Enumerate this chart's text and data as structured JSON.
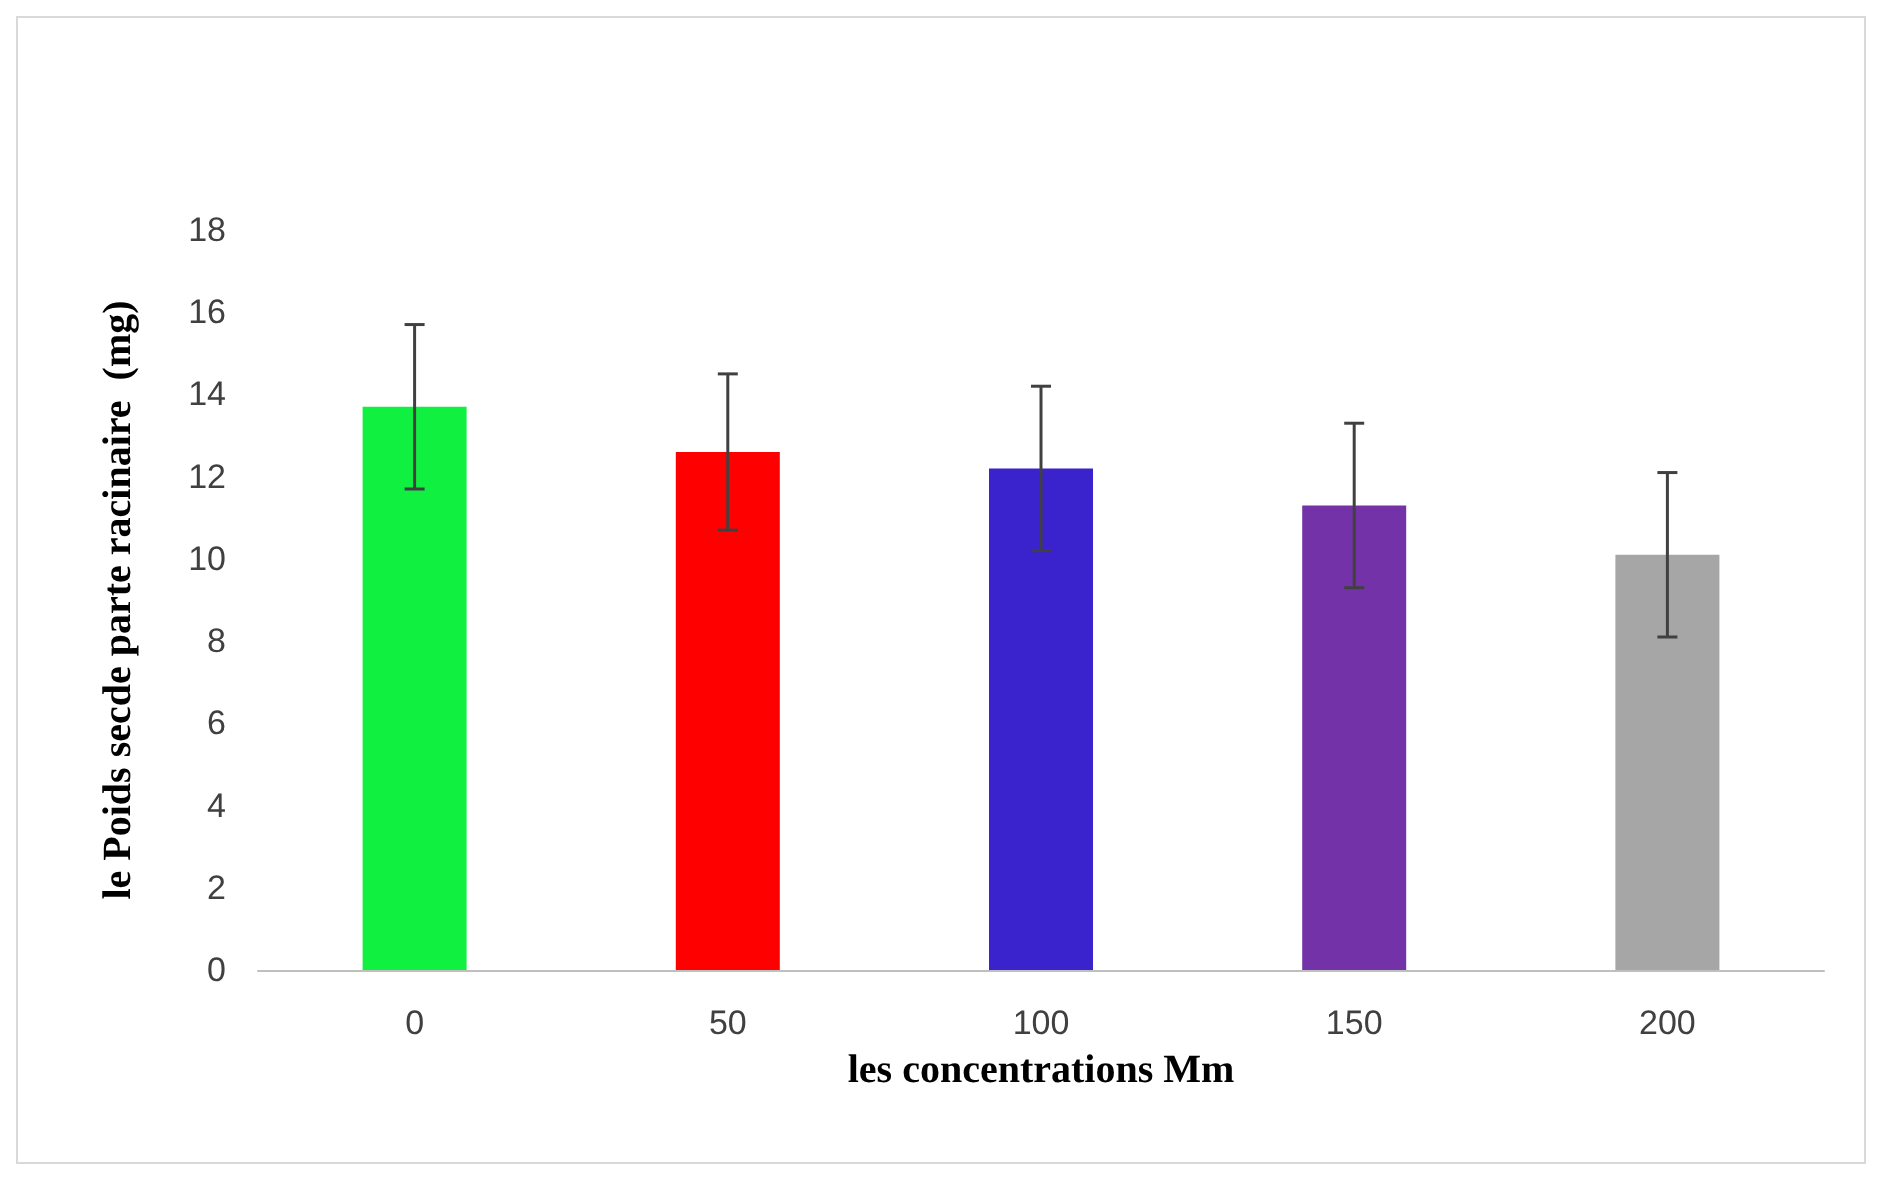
{
  "chart_data": {
    "type": "bar",
    "xlabel": "les concentrations Mm",
    "ylabel": "le Poids secde parte racinaire  (mg)",
    "categories": [
      "0",
      "50",
      "100",
      "150",
      "200"
    ],
    "values": [
      13.7,
      12.6,
      12.2,
      11.3,
      10.1
    ],
    "colors": [
      "#10f040",
      "#ff0000",
      "#3a22cc",
      "#7332a8",
      "#a6a6a6"
    ],
    "errors": [
      2,
      1.9,
      2,
      2,
      2
    ],
    "ylim": [
      0,
      18
    ],
    "yticks": [
      0,
      2,
      4,
      6,
      8,
      10,
      12,
      14,
      16,
      18
    ],
    "grid": false
  }
}
